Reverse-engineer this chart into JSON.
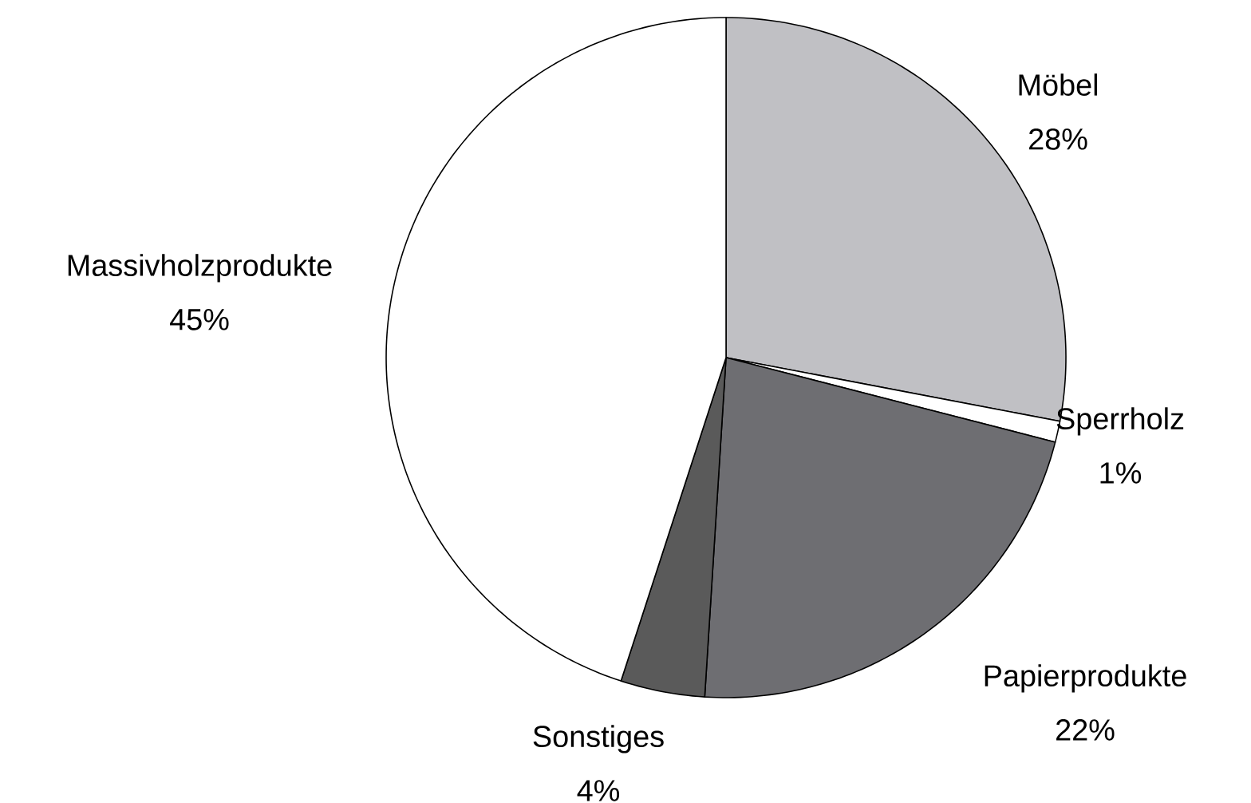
{
  "chart_data": {
    "type": "pie",
    "categories": [
      "Möbel",
      "Sperrholz",
      "Papierprodukte",
      "Sonstiges",
      "Massivholzprodukte"
    ],
    "values": [
      28,
      1,
      22,
      4,
      45
    ],
    "colors": [
      "#c0c0c4",
      "#ffffff",
      "#6e6e72",
      "#5a5a5a",
      "#ffffff"
    ],
    "value_labels": [
      "28%",
      "1%",
      "22%",
      "4%",
      "45%"
    ]
  }
}
